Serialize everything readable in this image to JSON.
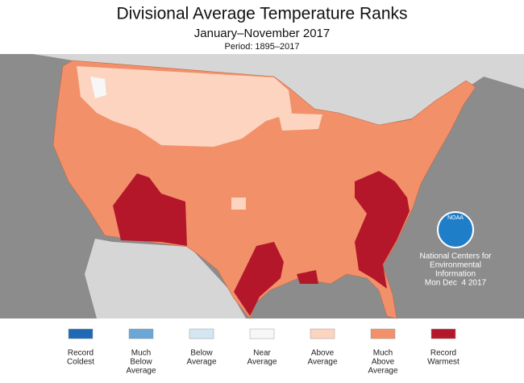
{
  "header": {
    "title": "Divisional Average Temperature Ranks",
    "subtitle": "January–November 2017",
    "period": "Period: 1895–2017"
  },
  "legend": [
    {
      "label": [
        "Record",
        "Coldest"
      ],
      "color": "#1f68b5"
    },
    {
      "label": [
        "Much",
        "Below",
        "Average"
      ],
      "color": "#6aa6d6"
    },
    {
      "label": [
        "Below",
        "Average"
      ],
      "color": "#d4e6f2"
    },
    {
      "label": [
        "Near",
        "Average"
      ],
      "color": "#f7f7f7"
    },
    {
      "label": [
        "Above",
        "Average"
      ],
      "color": "#fcd4c0"
    },
    {
      "label": [
        "Much",
        "Above",
        "Average"
      ],
      "color": "#f2906a"
    },
    {
      "label": [
        "Record",
        "Warmest"
      ],
      "color": "#b5172a"
    }
  ],
  "credit": {
    "logo": "NOAA",
    "lines": [
      "National Centers for",
      "Environmental",
      "Information",
      "Mon Dec  4 2017"
    ]
  }
}
